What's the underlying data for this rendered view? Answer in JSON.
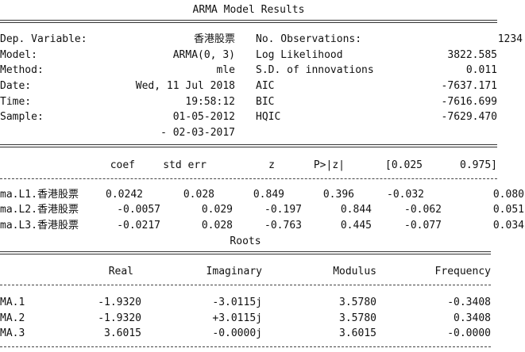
{
  "title": "ARMA Model Results",
  "summary": {
    "left": [
      {
        "label": "Dep. Variable:",
        "value": "香港股票"
      },
      {
        "label": "Model:",
        "value": "ARMA(0, 3)"
      },
      {
        "label": "Method:",
        "value": "mle"
      },
      {
        "label": "Date:",
        "value": "Wed, 11 Jul 2018"
      },
      {
        "label": "Time:",
        "value": "19:58:12"
      },
      {
        "label": "Sample:",
        "value": "01-05-2012"
      }
    ],
    "sample_end": "- 02-03-2017",
    "right": [
      {
        "label": "No. Observations:",
        "value": "1234"
      },
      {
        "label": "Log Likelihood",
        "value": "3822.585"
      },
      {
        "label": "S.D. of innovations",
        "value": "0.011"
      },
      {
        "label": "AIC",
        "value": "-7637.171"
      },
      {
        "label": "BIC",
        "value": "-7616.699"
      },
      {
        "label": "HQIC",
        "value": "-7629.470"
      }
    ]
  },
  "coef_table": {
    "headers": [
      "coef",
      "std err",
      "z",
      "P>|z|",
      "[0.025",
      "0.975]"
    ],
    "rows": [
      {
        "name": "ma.L1.香港股票",
        "cells": [
          "0.0242",
          "0.028",
          "0.849",
          "0.396",
          "-0.032",
          "0.080"
        ]
      },
      {
        "name": "ma.L2.香港股票",
        "cells": [
          "-0.0057",
          "0.029",
          "-0.197",
          "0.844",
          "-0.062",
          "0.051"
        ]
      },
      {
        "name": "ma.L3.香港股票",
        "cells": [
          "-0.0217",
          "0.028",
          "-0.763",
          "0.445",
          "-0.077",
          "0.034"
        ]
      }
    ]
  },
  "roots": {
    "title": "Roots",
    "headers": [
      "Real",
      "Imaginary",
      "Modulus",
      "Frequency"
    ],
    "rows": [
      {
        "name": "MA.1",
        "cells": [
          "-1.9320",
          "-3.0115j",
          "3.5780",
          "-0.3408"
        ]
      },
      {
        "name": "MA.2",
        "cells": [
          "-1.9320",
          "+3.0115j",
          "3.5780",
          "0.3408"
        ]
      },
      {
        "name": "MA.3",
        "cells": [
          "3.6015",
          "-0.0000j",
          "3.6015",
          "-0.0000"
        ]
      }
    ]
  }
}
